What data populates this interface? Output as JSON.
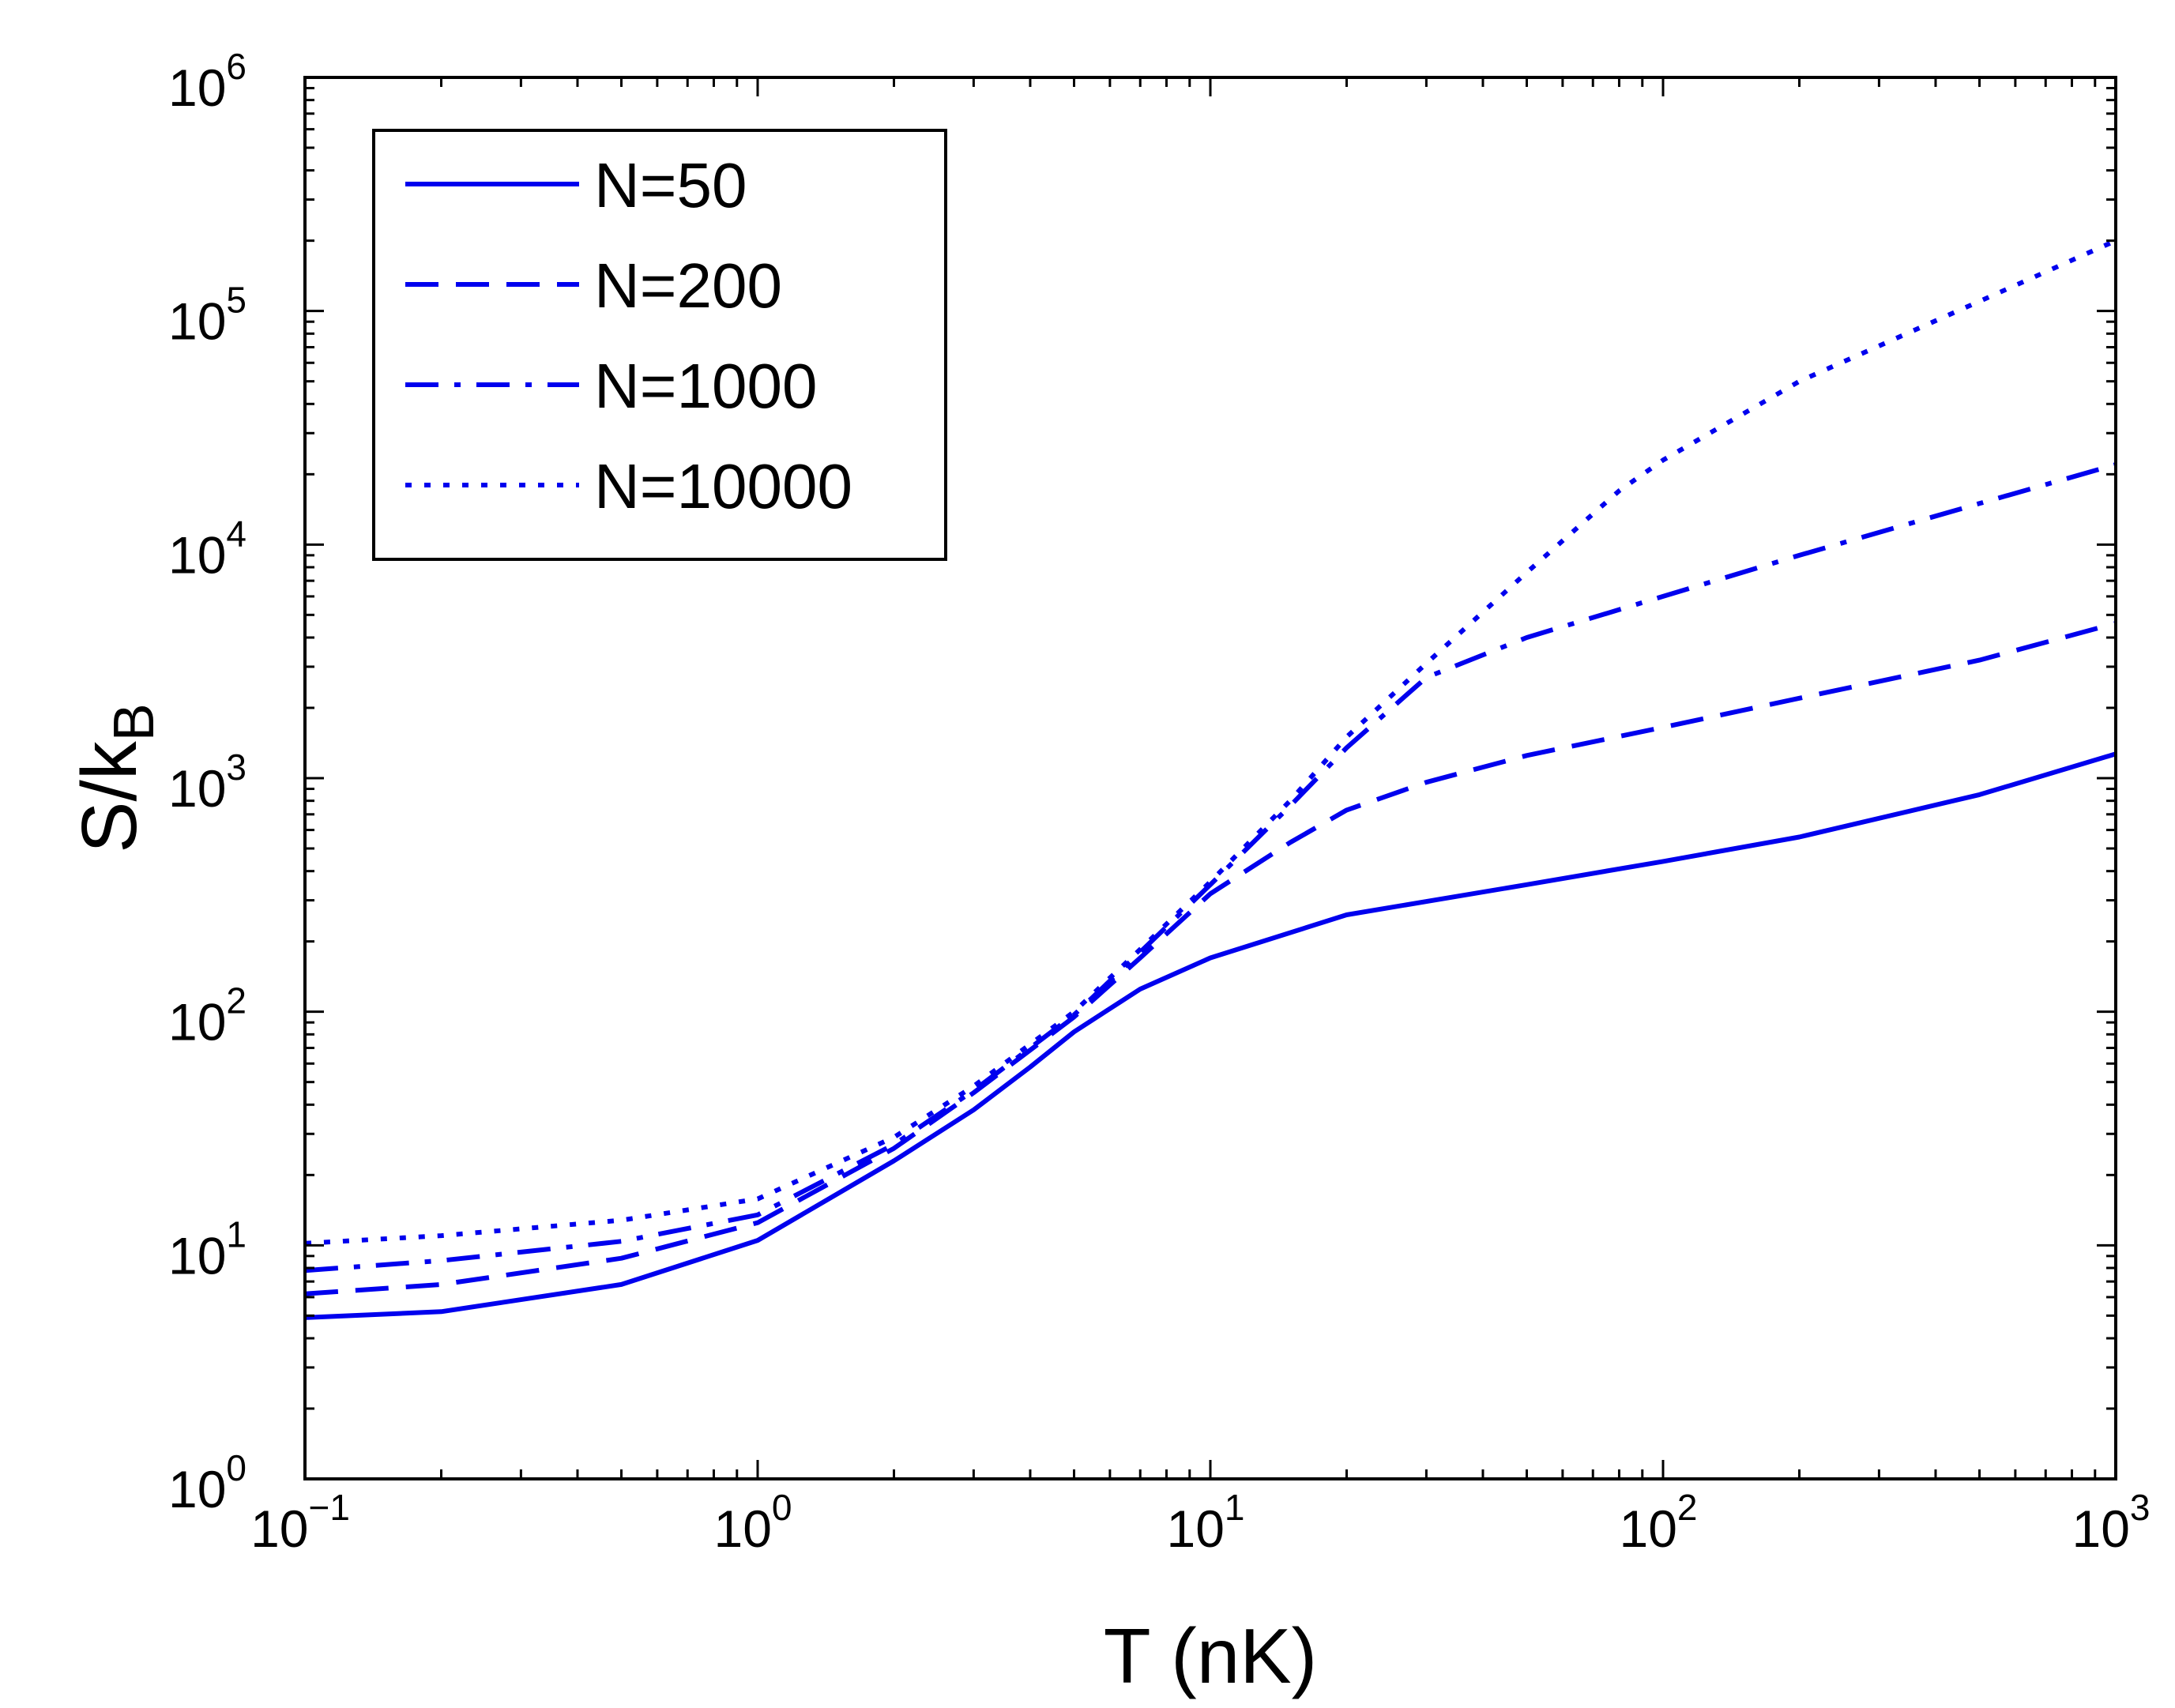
{
  "chart_data": {
    "type": "line",
    "title": "",
    "xlabel": "T (nK)",
    "ylabel_main": "S/k",
    "ylabel_sub": "B",
    "xscale": "log",
    "yscale": "log",
    "xlim": [
      0.1,
      1000
    ],
    "ylim": [
      1,
      1000000
    ],
    "grid": false,
    "legend_position": "top-left",
    "line_color": "#0000ee",
    "x_ticks": [
      {
        "base": "10",
        "exp": "−1",
        "value": 0.1
      },
      {
        "base": "10",
        "exp": "0",
        "value": 1
      },
      {
        "base": "10",
        "exp": "1",
        "value": 10
      },
      {
        "base": "10",
        "exp": "2",
        "value": 100
      },
      {
        "base": "10",
        "exp": "3",
        "value": 1000
      }
    ],
    "y_ticks": [
      {
        "base": "10",
        "exp": "0",
        "value": 1
      },
      {
        "base": "10",
        "exp": "1",
        "value": 10
      },
      {
        "base": "10",
        "exp": "2",
        "value": 100
      },
      {
        "base": "10",
        "exp": "3",
        "value": 1000
      },
      {
        "base": "10",
        "exp": "4",
        "value": 10000
      },
      {
        "base": "10",
        "exp": "5",
        "value": 100000
      },
      {
        "base": "10",
        "exp": "6",
        "value": 1000000
      }
    ],
    "series": [
      {
        "name": "N=50",
        "style": "solid",
        "x": [
          0.1,
          0.2,
          0.5,
          1,
          2,
          3,
          4,
          5,
          7,
          10,
          20,
          50,
          100,
          200,
          500,
          1000
        ],
        "y": [
          4.9,
          5.2,
          6.8,
          10.5,
          23,
          38,
          58,
          82,
          125,
          170,
          260,
          350,
          440,
          560,
          850,
          1270
        ]
      },
      {
        "name": "N=200",
        "style": "dashed",
        "x": [
          0.1,
          0.2,
          0.5,
          1,
          2,
          3,
          5,
          7,
          10,
          15,
          20,
          30,
          50,
          100,
          200,
          500,
          1000
        ],
        "y": [
          6.2,
          6.8,
          8.8,
          12.5,
          26,
          45,
          95,
          170,
          320,
          530,
          730,
          960,
          1250,
          1650,
          2200,
          3200,
          4600
        ]
      },
      {
        "name": "N=1000",
        "style": "dashdot",
        "x": [
          0.1,
          0.2,
          0.5,
          1,
          2,
          3,
          5,
          7,
          10,
          15,
          20,
          30,
          50,
          100,
          200,
          500,
          1000
        ],
        "y": [
          7.8,
          8.6,
          10.4,
          13.5,
          27,
          46,
          97,
          180,
          350,
          760,
          1350,
          2700,
          4000,
          6000,
          9000,
          15000,
          22000
        ]
      },
      {
        "name": "N=10000",
        "style": "dotted",
        "x": [
          0.1,
          0.2,
          0.5,
          1,
          2,
          3,
          5,
          7,
          10,
          15,
          20,
          30,
          50,
          80,
          100,
          200,
          500,
          1000
        ],
        "y": [
          10.2,
          11.0,
          12.8,
          15.8,
          29,
          48,
          100,
          185,
          360,
          800,
          1500,
          3100,
          7600,
          17000,
          23000,
          50000,
          110000,
          200000
        ]
      }
    ]
  }
}
